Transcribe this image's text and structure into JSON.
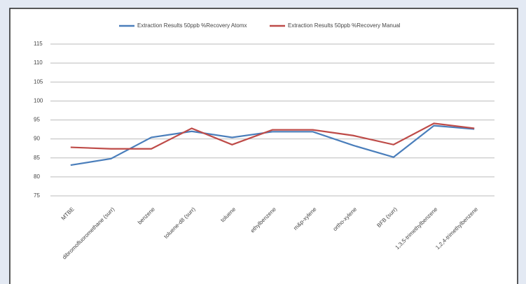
{
  "chart_data": {
    "type": "line",
    "categories": [
      "MTBE",
      "dibromofluoromethane (surr)",
      "benzene",
      "toluene-d8 (surr)",
      "toluene",
      "ethylbenzene",
      "m&p-xylene",
      "ortho-xylene",
      "BFB (surr)",
      "1,3,5-trimethylbenzene",
      "1,2,4-trimethylbenzene"
    ],
    "series": [
      {
        "name": "Extraction Results 50ppb %Recovery Atomx",
        "color": "#4a7ebb",
        "values": [
          83.1,
          84.8,
          90.4,
          92,
          90.4,
          91.9,
          91.9,
          88.3,
          85.2,
          93.5,
          92.6
        ]
      },
      {
        "name": "Extraction Results 50ppb %Recovery Manual",
        "color": "#be4b48",
        "values": [
          87.8,
          87.4,
          87.4,
          92.8,
          88.5,
          92.4,
          92.4,
          90.9,
          88.5,
          94.1,
          92.8
        ]
      }
    ],
    "ylim": [
      75,
      115
    ],
    "yticks": [
      75,
      80,
      85,
      90,
      95,
      100,
      105,
      110,
      115
    ],
    "grid": true,
    "legend": "top"
  }
}
